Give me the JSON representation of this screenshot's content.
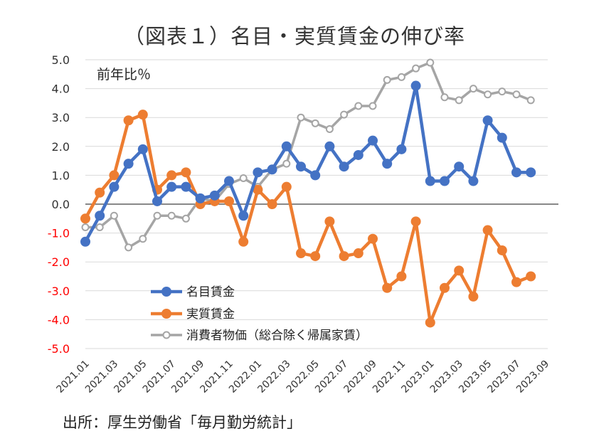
{
  "chart_data": {
    "type": "line",
    "title": "（図表１）名目・実質賃金の伸び率",
    "unit_label": "前年比％",
    "source": "出所：厚生労働省「毎月勤労統計」",
    "x": [
      "2021.01",
      "2021.02",
      "2021.03",
      "2021.04",
      "2021.05",
      "2021.06",
      "2021.07",
      "2021.08",
      "2021.09",
      "2021.10",
      "2021.11",
      "2021.12",
      "2022.01",
      "2022.02",
      "2022.03",
      "2022.04",
      "2022.05",
      "2022.06",
      "2022.07",
      "2022.08",
      "2022.09",
      "2022.10",
      "2022.11",
      "2022.12",
      "2023.01",
      "2023.02",
      "2023.03",
      "2023.04",
      "2023.05",
      "2023.06",
      "2023.07",
      "2023.08"
    ],
    "x_tick_labels": [
      "2021.01",
      "2021.03",
      "2021.05",
      "2021.07",
      "2021.09",
      "2021.11",
      "2022.01",
      "2022.03",
      "2022.05",
      "2022.07",
      "2022.09",
      "2022.11",
      "2023.01",
      "2023.03",
      "2023.05",
      "2023.07",
      "2023.09"
    ],
    "y_ticks": [
      "5.0",
      "4.0",
      "3.0",
      "2.0",
      "1.0",
      "0.0",
      "-1.0",
      "-2.0",
      "-3.0",
      "-4.0",
      "-5.0"
    ],
    "ylim": [
      -5,
      5
    ],
    "grid": true,
    "legend_position": "bottom-left",
    "series": [
      {
        "name": "名目賃金",
        "color": "#4472c4",
        "marker": "filled",
        "values": [
          -1.3,
          -0.4,
          0.6,
          1.4,
          1.9,
          0.1,
          0.6,
          0.6,
          0.2,
          0.3,
          0.8,
          -0.4,
          1.1,
          1.2,
          2.0,
          1.3,
          1.0,
          2.0,
          1.3,
          1.7,
          2.2,
          1.4,
          1.9,
          4.1,
          0.8,
          0.8,
          1.3,
          0.8,
          2.9,
          2.3,
          1.1,
          1.1
        ]
      },
      {
        "name": "実質賃金",
        "color": "#ed7d31",
        "marker": "filled",
        "values": [
          -0.5,
          0.4,
          1.0,
          2.9,
          3.1,
          0.5,
          1.0,
          1.1,
          0.0,
          0.1,
          0.1,
          -1.3,
          0.5,
          0.0,
          0.6,
          -1.7,
          -1.8,
          -0.6,
          -1.8,
          -1.7,
          -1.2,
          -2.9,
          -2.5,
          -0.6,
          -4.1,
          -2.9,
          -2.3,
          -3.2,
          -0.9,
          -1.6,
          -2.7,
          -2.5
        ]
      },
      {
        "name": "消費者物価（総合除く帰属家賃）",
        "color": "#a5a5a5",
        "marker": "hollow",
        "values": [
          -0.8,
          -0.8,
          -0.4,
          -1.5,
          -1.2,
          -0.4,
          -0.4,
          -0.5,
          0.2,
          0.1,
          0.7,
          0.9,
          0.6,
          1.2,
          1.4,
          3.0,
          2.8,
          2.6,
          3.1,
          3.4,
          3.4,
          4.3,
          4.4,
          4.7,
          4.9,
          3.7,
          3.6,
          4.0,
          3.8,
          3.9,
          3.8,
          3.6
        ]
      }
    ]
  }
}
